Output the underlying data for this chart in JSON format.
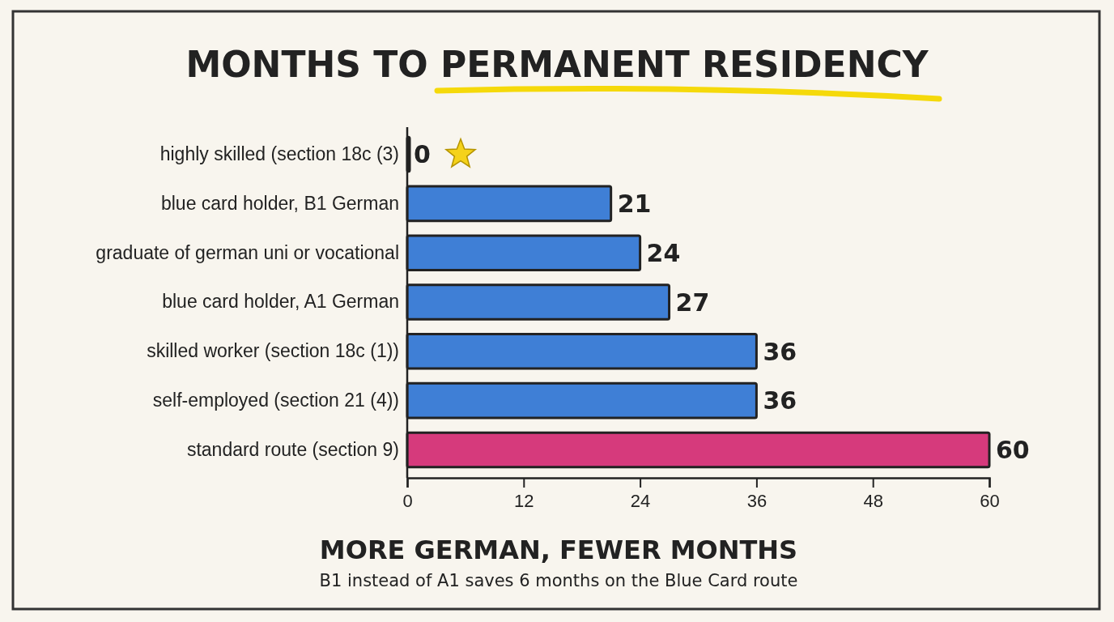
{
  "chart_data": {
    "type": "bar",
    "orientation": "horizontal",
    "title": "MONTHS TO PERMANENT RESIDENCY",
    "categories": [
      "highly skilled (section 18c (3)",
      "blue card holder, B1 German",
      "graduate of german uni or vocational",
      "blue card holder, A1 German",
      "skilled worker (section 18c (1))",
      "self-employed (section 21 (4))",
      "standard route (section 9)"
    ],
    "values": [
      0,
      21,
      24,
      27,
      36,
      36,
      60
    ],
    "colors": [
      "#d63a7c",
      "#3f7fd6",
      "#3f7fd6",
      "#3f7fd6",
      "#3f7fd6",
      "#3f7fd6",
      "#d63a7c"
    ],
    "xlim": [
      0,
      60
    ],
    "xticks": [
      0,
      12,
      24,
      36,
      48,
      60
    ],
    "data_labels": true,
    "grid": false,
    "annotations": [
      "MORE GERMAN, FEWER MONTHS",
      "B1 instead of A1 saves 6 months on the Blue Card route"
    ]
  }
}
